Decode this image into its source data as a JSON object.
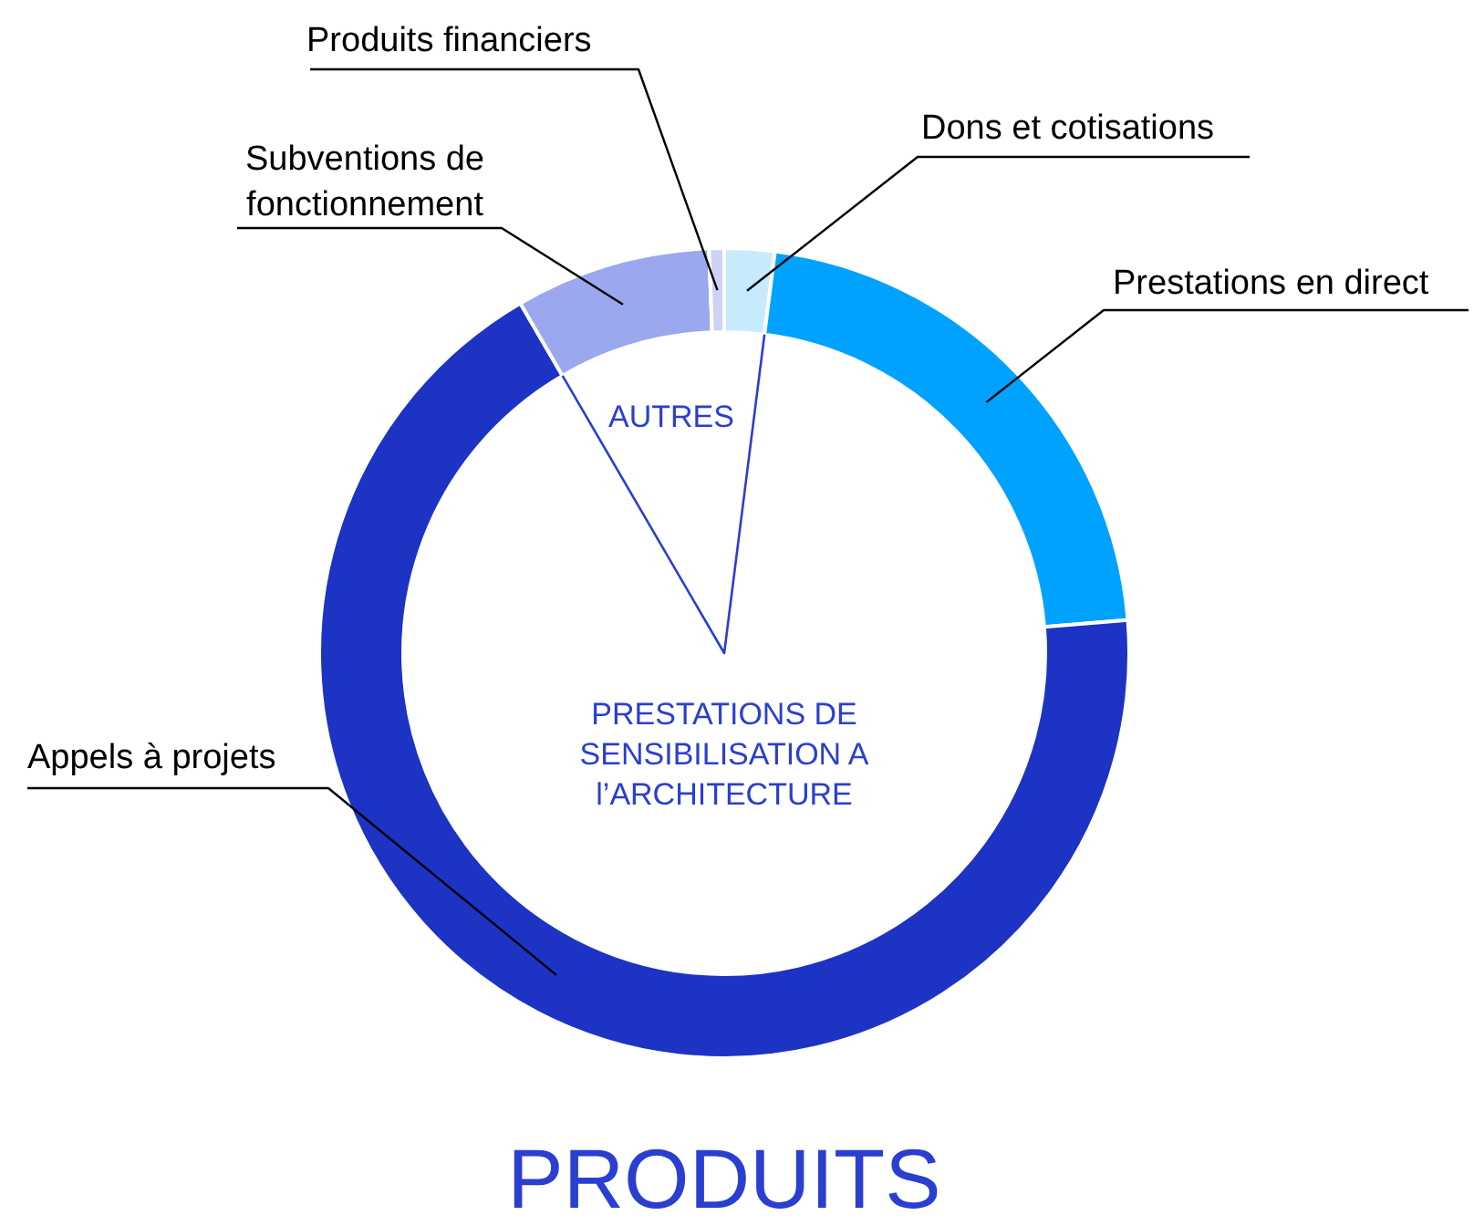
{
  "chart_data": {
    "type": "donut",
    "title": "PRODUITS",
    "categories": [
      "Dons et cotisations",
      "Prestations en direct",
      "Appels à projets",
      "Subventions de fonctionnement",
      "Produits financiers"
    ],
    "values": [
      2,
      21.7,
      67.9,
      7.8,
      0.6
    ],
    "colors": [
      "#c8eafd",
      "#00a2ff",
      "#1c33c4",
      "#9ba8ef",
      "#cdd3f5"
    ],
    "annotations": [
      "AUTRES",
      "PRESTATIONS DE SENSIBILISATION A l’ARCHITECTURE"
    ]
  }
}
